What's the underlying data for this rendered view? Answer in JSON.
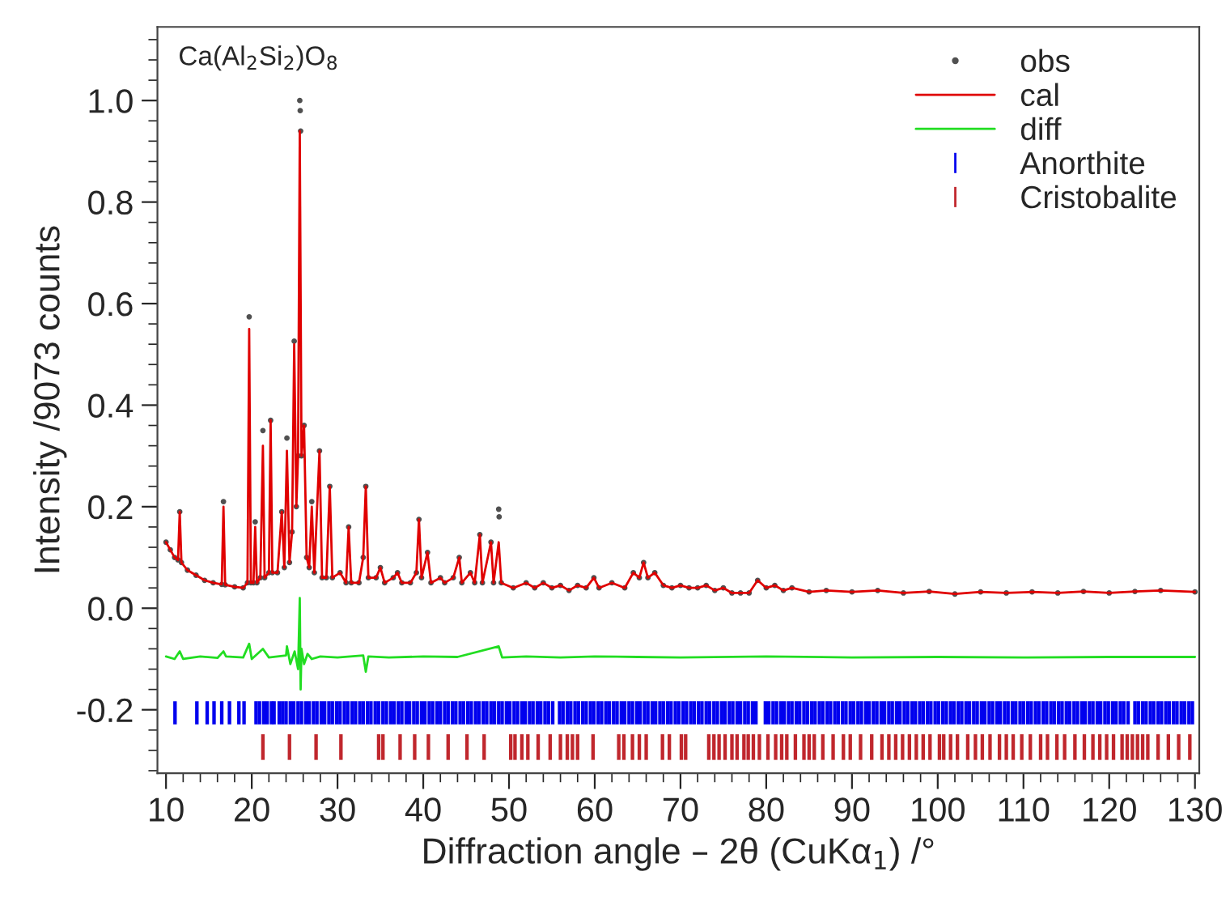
{
  "chart_data": {
    "type": "line",
    "xlabel": "Diffraction angle – 2θ (CuKα$_{1}$) /°",
    "ylabel": "Intensity /9073 counts",
    "annotations": [
      "Ca(Al$_{2}$Si$_{2}$)O$_{8}$"
    ],
    "xlim": [
      9,
      130.5
    ],
    "ylim": [
      -0.325,
      1.145
    ],
    "xticks": [
      10,
      20,
      30,
      40,
      50,
      60,
      70,
      80,
      90,
      100,
      110,
      120,
      130
    ],
    "yticks": [
      {
        "value": -0.2,
        "label": "-0.2"
      },
      {
        "value": 0,
        "label": "0.0"
      },
      {
        "value": 0.2,
        "label": "0.2"
      },
      {
        "value": 0.4,
        "label": "0.4"
      },
      {
        "value": 0.6,
        "label": "0.6"
      },
      {
        "value": 0.8,
        "label": "0.8"
      },
      {
        "value": 1.0,
        "label": "1.0"
      }
    ],
    "legend": "top right",
    "grid": false,
    "series": [
      {
        "name": "obs",
        "type": "scatter",
        "marker": "circle",
        "color": "#505050",
        "x": [
          10,
          10.5,
          11,
          11.4,
          11.6,
          11.8,
          12.5,
          13.5,
          14.5,
          15.5,
          16.5,
          16.7,
          16.9,
          18,
          19,
          19.5,
          19.7,
          19.9,
          20.2,
          20.4,
          20.6,
          21.0,
          21.3,
          21.5,
          22.0,
          22.2,
          22.4,
          23.0,
          23.5,
          23.8,
          24.1,
          24.4,
          24.7,
          24.95,
          25.2,
          25.4,
          25.6,
          25.65,
          25.7,
          25.8,
          26.1,
          26.4,
          26.7,
          27.0,
          27.3,
          27.9,
          28.2,
          28.7,
          29.1,
          29.4,
          30.3,
          31.0,
          31.3,
          31.6,
          32.5,
          33.0,
          33.3,
          33.6,
          34.5,
          35,
          35.5,
          36.5,
          37,
          37.5,
          38.5,
          39.2,
          39.5,
          39.8,
          40.5,
          40.9,
          42,
          42.5,
          43.5,
          44.2,
          44.5,
          45.5,
          46,
          46.6,
          46.9,
          47.9,
          48.2,
          48.8,
          48.85,
          49.1,
          50.5,
          52,
          53,
          54,
          55,
          56,
          57,
          58,
          59,
          59.9,
          60.5,
          62,
          63.5,
          64.5,
          65.2,
          65.7,
          66.2,
          67,
          68,
          69,
          70,
          71,
          72,
          73,
          74,
          75,
          76,
          77,
          78,
          79,
          80,
          81,
          82,
          83,
          85,
          87,
          90,
          93,
          96,
          99,
          102,
          105,
          108,
          111,
          114,
          117,
          120,
          123,
          126,
          130
        ],
        "values": [
          0.13,
          0.115,
          0.1,
          0.095,
          0.19,
          0.09,
          0.075,
          0.065,
          0.055,
          0.05,
          0.047,
          0.21,
          0.046,
          0.042,
          0.04,
          0.05,
          0.574,
          0.05,
          0.05,
          0.17,
          0.05,
          0.06,
          0.35,
          0.06,
          0.07,
          0.37,
          0.07,
          0.07,
          0.19,
          0.08,
          0.335,
          0.09,
          0.15,
          0.526,
          0.2,
          0.3,
          1.0,
          0.98,
          0.94,
          0.3,
          0.36,
          0.1,
          0.08,
          0.21,
          0.07,
          0.31,
          0.06,
          0.06,
          0.24,
          0.06,
          0.07,
          0.05,
          0.16,
          0.05,
          0.05,
          0.1,
          0.24,
          0.06,
          0.06,
          0.08,
          0.05,
          0.06,
          0.07,
          0.05,
          0.05,
          0.07,
          0.175,
          0.06,
          0.11,
          0.05,
          0.06,
          0.05,
          0.06,
          0.1,
          0.05,
          0.07,
          0.05,
          0.145,
          0.05,
          0.13,
          0.05,
          0.195,
          0.18,
          0.05,
          0.04,
          0.05,
          0.04,
          0.05,
          0.04,
          0.045,
          0.035,
          0.045,
          0.04,
          0.06,
          0.04,
          0.05,
          0.04,
          0.07,
          0.06,
          0.09,
          0.06,
          0.07,
          0.045,
          0.04,
          0.045,
          0.04,
          0.04,
          0.045,
          0.035,
          0.04,
          0.03,
          0.03,
          0.03,
          0.055,
          0.04,
          0.045,
          0.035,
          0.04,
          0.032,
          0.035,
          0.032,
          0.035,
          0.03,
          0.033,
          0.028,
          0.032,
          0.03,
          0.032,
          0.03,
          0.033,
          0.03,
          0.033,
          0.035,
          0.032
        ]
      },
      {
        "name": "cal",
        "color": "#e00000",
        "x": [
          10,
          10.5,
          11,
          11.4,
          11.6,
          11.8,
          12.5,
          13.5,
          14.5,
          15.5,
          16.5,
          16.7,
          16.9,
          18,
          19,
          19.5,
          19.7,
          19.9,
          20.2,
          20.4,
          20.6,
          21.0,
          21.3,
          21.5,
          22.0,
          22.2,
          22.4,
          23.0,
          23.5,
          23.8,
          24.1,
          24.4,
          24.7,
          24.95,
          25.2,
          25.4,
          25.6,
          25.8,
          26.1,
          26.4,
          26.7,
          27.0,
          27.3,
          27.9,
          28.2,
          28.7,
          29.1,
          29.4,
          30.3,
          31.0,
          31.3,
          31.6,
          32.5,
          33.0,
          33.3,
          33.6,
          34.5,
          35,
          35.5,
          36.5,
          37,
          37.5,
          38.5,
          39.2,
          39.5,
          39.8,
          40.5,
          40.9,
          42,
          42.5,
          43.5,
          44.2,
          44.5,
          45.5,
          46,
          46.6,
          46.9,
          47.9,
          48.2,
          48.8,
          49.1,
          50.5,
          52,
          53,
          54,
          55,
          56,
          57,
          58,
          59,
          59.9,
          60.5,
          62,
          63.5,
          64.5,
          65.2,
          65.7,
          66.2,
          67,
          68,
          69,
          70,
          71,
          72,
          73,
          74,
          75,
          76,
          77,
          78,
          79,
          80,
          81,
          82,
          83,
          85,
          87,
          90,
          93,
          96,
          99,
          102,
          105,
          108,
          111,
          114,
          117,
          120,
          123,
          126,
          130
        ],
        "values": [
          0.13,
          0.115,
          0.1,
          0.095,
          0.19,
          0.09,
          0.075,
          0.065,
          0.055,
          0.05,
          0.047,
          0.2,
          0.046,
          0.042,
          0.04,
          0.05,
          0.55,
          0.05,
          0.05,
          0.16,
          0.05,
          0.06,
          0.32,
          0.06,
          0.07,
          0.37,
          0.07,
          0.07,
          0.19,
          0.08,
          0.31,
          0.09,
          0.15,
          0.52,
          0.2,
          0.3,
          0.94,
          0.3,
          0.36,
          0.1,
          0.08,
          0.2,
          0.07,
          0.31,
          0.06,
          0.06,
          0.24,
          0.06,
          0.07,
          0.05,
          0.16,
          0.05,
          0.05,
          0.1,
          0.24,
          0.06,
          0.06,
          0.08,
          0.05,
          0.06,
          0.07,
          0.05,
          0.05,
          0.07,
          0.175,
          0.06,
          0.11,
          0.05,
          0.06,
          0.05,
          0.06,
          0.1,
          0.05,
          0.07,
          0.05,
          0.145,
          0.05,
          0.13,
          0.05,
          0.13,
          0.05,
          0.04,
          0.05,
          0.04,
          0.05,
          0.04,
          0.045,
          0.035,
          0.045,
          0.04,
          0.06,
          0.04,
          0.05,
          0.04,
          0.07,
          0.06,
          0.09,
          0.06,
          0.07,
          0.045,
          0.04,
          0.045,
          0.04,
          0.04,
          0.045,
          0.035,
          0.04,
          0.03,
          0.03,
          0.03,
          0.055,
          0.04,
          0.045,
          0.035,
          0.04,
          0.032,
          0.035,
          0.032,
          0.035,
          0.03,
          0.033,
          0.028,
          0.032,
          0.03,
          0.032,
          0.03,
          0.033,
          0.03,
          0.033,
          0.035,
          0.032
        ]
      },
      {
        "name": "diff",
        "type": "line",
        "color": "#22dd22",
        "x": [
          10,
          11,
          11.6,
          12,
          14,
          16,
          16.7,
          17,
          19,
          19.7,
          20,
          21.3,
          22,
          24,
          24.1,
          24.5,
          25,
          25.4,
          25.6,
          25.7,
          25.8,
          26.1,
          26.5,
          27,
          28,
          30,
          33,
          33.3,
          33.6,
          36,
          40,
          44,
          48.8,
          49.2,
          52,
          56,
          60,
          65,
          70,
          80,
          90,
          100,
          110,
          120,
          130
        ],
        "values": [
          -0.095,
          -0.1,
          -0.085,
          -0.1,
          -0.095,
          -0.098,
          -0.085,
          -0.095,
          -0.097,
          -0.07,
          -0.1,
          -0.08,
          -0.097,
          -0.093,
          -0.075,
          -0.11,
          -0.085,
          -0.12,
          0.02,
          -0.16,
          -0.08,
          -0.11,
          -0.09,
          -0.1,
          -0.095,
          -0.097,
          -0.093,
          -0.125,
          -0.095,
          -0.097,
          -0.095,
          -0.096,
          -0.075,
          -0.097,
          -0.095,
          -0.097,
          -0.095,
          -0.096,
          -0.097,
          -0.095,
          -0.097,
          -0.096,
          -0.097,
          -0.096,
          -0.096
        ]
      },
      {
        "name": "Anorthite",
        "type": "bar",
        "color": "#0000ee",
        "base": [
          -0.227,
          -0.227,
          -0.227,
          -0.227,
          -0.227,
          -0.227,
          -0.227,
          -0.227,
          -0.227,
          -0.227,
          -0.227,
          -0.227,
          -0.227,
          -0.227,
          -0.227,
          -0.227,
          -0.227,
          -0.227,
          -0.227,
          -0.227,
          -0.227,
          -0.227,
          -0.227,
          -0.227,
          -0.227,
          -0.227,
          -0.227,
          -0.227,
          -0.227,
          -0.227,
          -0.227,
          -0.227,
          -0.227,
          -0.227,
          -0.227,
          -0.227,
          -0.227,
          -0.227,
          -0.227,
          -0.227,
          -0.227,
          -0.227,
          -0.227,
          -0.227,
          -0.227,
          -0.227,
          -0.227,
          -0.227,
          -0.227,
          -0.227,
          -0.227,
          -0.227,
          -0.227,
          -0.227,
          -0.227,
          -0.227,
          -0.227,
          -0.227,
          -0.227,
          -0.227,
          -0.227,
          -0.227,
          -0.227,
          -0.227,
          -0.227,
          -0.227,
          -0.227,
          -0.227,
          -0.227,
          -0.227,
          -0.227,
          -0.227,
          -0.227,
          -0.227,
          -0.227,
          -0.227,
          -0.227,
          -0.227,
          -0.227,
          -0.227,
          -0.227,
          -0.227,
          -0.227,
          -0.227,
          -0.227,
          -0.227,
          -0.227,
          -0.227,
          -0.227,
          -0.227,
          -0.227,
          -0.227,
          -0.227,
          -0.227,
          -0.227,
          -0.227,
          -0.227,
          -0.227,
          -0.227,
          -0.227,
          -0.227,
          -0.227,
          -0.227,
          -0.227,
          -0.227,
          -0.227,
          -0.227,
          -0.227,
          -0.227,
          -0.227,
          -0.227,
          -0.227,
          -0.227,
          -0.227,
          -0.227,
          -0.227,
          -0.227,
          -0.227,
          -0.227,
          -0.227,
          -0.227,
          -0.227,
          -0.227,
          -0.227,
          -0.227,
          -0.227,
          -0.227,
          -0.227,
          -0.227,
          -0.227,
          -0.227,
          -0.227,
          -0.227,
          -0.227,
          -0.227,
          -0.227,
          -0.227,
          -0.227,
          -0.227,
          -0.227,
          -0.227,
          -0.227,
          -0.227,
          -0.227,
          -0.227,
          -0.227,
          -0.227,
          -0.227,
          -0.227,
          -0.227,
          -0.227,
          -0.227,
          -0.227,
          -0.227,
          -0.227,
          -0.227,
          -0.227,
          -0.227,
          -0.227,
          -0.227,
          -0.227,
          -0.227,
          -0.227,
          -0.227,
          -0.227,
          -0.227,
          -0.227,
          -0.227,
          -0.227,
          -0.227,
          -0.227,
          -0.227,
          -0.227,
          -0.227,
          -0.227,
          -0.227,
          -0.227,
          -0.227,
          -0.227,
          -0.227,
          -0.227,
          -0.227,
          -0.227,
          -0.227,
          -0.227,
          -0.227,
          -0.227,
          -0.227,
          -0.227,
          -0.227,
          -0.227,
          -0.227,
          -0.227,
          -0.227,
          -0.227,
          -0.227,
          -0.227,
          -0.227,
          -0.227,
          -0.227,
          -0.227,
          -0.227,
          -0.227,
          -0.227,
          -0.227,
          -0.227,
          -0.227,
          -0.227,
          -0.227,
          -0.227,
          -0.227,
          -0.227,
          -0.227,
          -0.227,
          -0.227,
          -0.227,
          -0.227,
          -0.227,
          -0.227,
          -0.227,
          -0.227,
          -0.227,
          -0.227,
          -0.227,
          -0.227,
          -0.227,
          -0.227,
          -0.227,
          -0.227,
          -0.227,
          -0.227,
          -0.227,
          -0.227,
          -0.227,
          -0.227,
          -0.227,
          -0.227,
          -0.227,
          -0.227,
          -0.227,
          -0.227,
          -0.227,
          -0.227,
          -0.227,
          -0.227,
          -0.227,
          -0.227,
          -0.227,
          -0.227
        ],
        "x": [
          11.05,
          13.6,
          14.8,
          15.6,
          16.5,
          17.4,
          18.5,
          19.1,
          20.5,
          20.9,
          21.4,
          21.8,
          22.3,
          22.6,
          23.2,
          23.6,
          24.0,
          24.5,
          24.9,
          25.4,
          25.8,
          26.3,
          26.7,
          27.2,
          27.6,
          28.1,
          28.5,
          29.0,
          29.4,
          29.9,
          30.3,
          30.8,
          31.2,
          31.7,
          32.1,
          32.6,
          33.0,
          33.5,
          33.9,
          34.4,
          34.8,
          35.3,
          35.7,
          36.2,
          36.6,
          37.1,
          37.5,
          38.0,
          38.4,
          38.9,
          39.3,
          39.8,
          40.2,
          40.7,
          41.1,
          41.6,
          42.0,
          42.5,
          42.9,
          43.4,
          43.8,
          44.3,
          44.7,
          45.2,
          45.6,
          46.1,
          46.5,
          47.0,
          47.4,
          47.9,
          48.3,
          48.8,
          49.2,
          49.7,
          50.1,
          50.6,
          51.0,
          51.5,
          51.9,
          52.4,
          52.8,
          53.3,
          53.7,
          54.2,
          54.6,
          55.1,
          55.9,
          56.3,
          56.8,
          57.2,
          57.7,
          58.1,
          58.6,
          59.0,
          59.5,
          59.9,
          60.4,
          60.8,
          61.3,
          61.7,
          62.2,
          62.6,
          63.1,
          63.5,
          64.0,
          64.4,
          64.9,
          65.3,
          65.8,
          66.2,
          66.7,
          67.1,
          67.6,
          68.0,
          68.5,
          68.9,
          69.4,
          69.8,
          70.3,
          70.7,
          71.2,
          71.6,
          72.1,
          72.5,
          73.0,
          73.4,
          73.9,
          74.3,
          74.8,
          75.2,
          75.7,
          76.1,
          76.6,
          77.0,
          77.5,
          77.9,
          78.4,
          78.8,
          79.9,
          80.3,
          80.8,
          81.2,
          81.7,
          82.1,
          82.6,
          83.0,
          83.5,
          83.9,
          84.4,
          84.8,
          85.3,
          85.7,
          86.2,
          86.6,
          87.1,
          87.5,
          88.0,
          88.4,
          88.9,
          89.3,
          89.8,
          90.2,
          90.7,
          91.1,
          91.6,
          92.0,
          92.5,
          92.9,
          93.4,
          93.8,
          94.3,
          94.7,
          95.2,
          95.6,
          96.1,
          96.5,
          97.0,
          97.4,
          97.9,
          98.3,
          98.8,
          99.2,
          99.7,
          100.1,
          100.6,
          101.0,
          101.5,
          101.9,
          102.4,
          102.8,
          103.3,
          103.7,
          104.2,
          104.6,
          105.1,
          105.5,
          106.0,
          106.4,
          106.9,
          107.3,
          107.8,
          108.2,
          108.7,
          109.1,
          109.6,
          110.0,
          110.5,
          110.9,
          111.4,
          111.8,
          112.3,
          112.7,
          113.2,
          113.6,
          114.1,
          114.5,
          115.0,
          115.4,
          115.9,
          116.3,
          116.8,
          117.2,
          117.7,
          118.1,
          118.6,
          119.0,
          119.5,
          119.9,
          120.4,
          120.8,
          121.3,
          121.7,
          122.2,
          123.0,
          123.4,
          123.9,
          124.3,
          124.8,
          125.2,
          125.7,
          126.1,
          126.6,
          127.0,
          127.5,
          127.9,
          128.4,
          128.8,
          129.3,
          129.7
        ],
        "values": [
          0.042,
          0.042,
          0.042,
          0.042,
          0.042,
          0.042,
          0.042,
          0.042,
          0.042,
          0.042,
          0.042,
          0.042,
          0.042,
          0.042,
          0.042,
          0.042,
          0.042,
          0.042,
          0.042,
          0.042,
          0.042,
          0.042,
          0.042,
          0.042,
          0.042,
          0.042,
          0.042,
          0.042,
          0.042,
          0.042,
          0.042,
          0.042,
          0.042,
          0.042,
          0.042,
          0.042,
          0.042,
          0.042,
          0.042,
          0.042,
          0.042,
          0.042,
          0.042,
          0.042,
          0.042,
          0.042,
          0.042,
          0.042,
          0.042,
          0.042,
          0.042,
          0.042,
          0.042,
          0.042,
          0.042,
          0.042,
          0.042,
          0.042,
          0.042,
          0.042,
          0.042,
          0.042,
          0.042,
          0.042,
          0.042,
          0.042,
          0.042,
          0.042,
          0.042,
          0.042,
          0.042,
          0.042,
          0.042,
          0.042,
          0.042,
          0.042,
          0.042,
          0.042,
          0.042,
          0.042,
          0.042,
          0.042,
          0.042,
          0.042,
          0.042,
          0.042,
          0.042,
          0.042,
          0.042,
          0.042,
          0.042,
          0.042,
          0.042,
          0.042,
          0.042,
          0.042,
          0.042,
          0.042,
          0.042,
          0.042,
          0.042,
          0.042,
          0.042,
          0.042,
          0.042,
          0.042,
          0.042,
          0.042,
          0.042,
          0.042,
          0.042,
          0.042,
          0.042,
          0.042,
          0.042,
          0.042,
          0.042,
          0.042,
          0.042,
          0.042,
          0.042,
          0.042,
          0.042,
          0.042,
          0.042,
          0.042,
          0.042,
          0.042,
          0.042,
          0.042,
          0.042,
          0.042,
          0.042,
          0.042,
          0.042,
          0.042,
          0.042,
          0.042,
          0.042,
          0.042,
          0.042,
          0.042,
          0.042,
          0.042,
          0.042,
          0.042,
          0.042,
          0.042,
          0.042,
          0.042,
          0.042,
          0.042,
          0.042,
          0.042,
          0.042,
          0.042,
          0.042,
          0.042,
          0.042,
          0.042,
          0.042,
          0.042,
          0.042,
          0.042,
          0.042,
          0.042,
          0.042,
          0.042,
          0.042,
          0.042,
          0.042,
          0.042,
          0.042,
          0.042,
          0.042,
          0.042,
          0.042,
          0.042,
          0.042,
          0.042,
          0.042,
          0.042,
          0.042,
          0.042,
          0.042,
          0.042,
          0.042,
          0.042,
          0.042,
          0.042,
          0.042,
          0.042,
          0.042,
          0.042,
          0.042,
          0.042,
          0.042,
          0.042,
          0.042,
          0.042,
          0.042,
          0.042,
          0.042,
          0.042,
          0.042,
          0.042,
          0.042,
          0.042,
          0.042,
          0.042,
          0.042,
          0.042,
          0.042,
          0.042,
          0.042,
          0.042,
          0.042,
          0.042,
          0.042,
          0.042,
          0.042,
          0.042,
          0.042,
          0.042,
          0.042,
          0.042,
          0.042,
          0.042,
          0.042,
          0.042,
          0.042,
          0.042,
          0.042,
          0.042,
          0.042,
          0.042,
          0.042,
          0.042,
          0.042,
          0.042,
          0.042,
          0.042,
          0.042,
          0.042,
          0.042,
          0.042,
          0.042,
          0.042,
          0.042
        ]
      },
      {
        "name": "Cristobalite",
        "type": "bar",
        "color": "#c0272d",
        "base": [
          -0.297,
          -0.297,
          -0.297,
          -0.297,
          -0.297,
          -0.297,
          -0.297,
          -0.297,
          -0.297,
          -0.297,
          -0.297,
          -0.297,
          -0.297,
          -0.297,
          -0.297,
          -0.297,
          -0.297,
          -0.297,
          -0.297,
          -0.297,
          -0.297,
          -0.297,
          -0.297,
          -0.297,
          -0.297,
          -0.297,
          -0.297,
          -0.297,
          -0.297,
          -0.297,
          -0.297,
          -0.297,
          -0.297,
          -0.297,
          -0.297,
          -0.297,
          -0.297,
          -0.297,
          -0.297,
          -0.297,
          -0.297,
          -0.297,
          -0.297,
          -0.297,
          -0.297,
          -0.297,
          -0.297,
          -0.297,
          -0.297,
          -0.297,
          -0.297,
          -0.297,
          -0.297,
          -0.297,
          -0.297,
          -0.297,
          -0.297,
          -0.297,
          -0.297,
          -0.297,
          -0.297,
          -0.297,
          -0.297,
          -0.297,
          -0.297,
          -0.297,
          -0.297,
          -0.297,
          -0.297,
          -0.297,
          -0.297,
          -0.297,
          -0.297,
          -0.297,
          -0.297,
          -0.297,
          -0.297,
          -0.297,
          -0.297,
          -0.297,
          -0.297,
          -0.297,
          -0.297,
          -0.297,
          -0.297,
          -0.297,
          -0.297,
          -0.297,
          -0.297,
          -0.297,
          -0.297,
          -0.297,
          -0.297,
          -0.297,
          -0.297,
          -0.297,
          -0.297
        ],
        "x": [
          21.3,
          24.4,
          27.5,
          30.4,
          34.8,
          35.3,
          37.3,
          39.0,
          40.6,
          42.9,
          45.1,
          47.1,
          50.2,
          50.7,
          51.5,
          52.2,
          53.4,
          54.8,
          56.0,
          56.8,
          57.4,
          58.0,
          59.8,
          62.8,
          63.4,
          64.4,
          65.2,
          66.0,
          67.9,
          68.7,
          70.1,
          70.6,
          73.3,
          73.9,
          74.5,
          75.2,
          76.0,
          76.6,
          77.4,
          77.9,
          78.5,
          79.2,
          80.2,
          81.1,
          81.8,
          82.4,
          83.4,
          84.4,
          85.0,
          85.6,
          86.6,
          87.8,
          89.0,
          89.8,
          91.0,
          92.3,
          93.5,
          94.3,
          95.1,
          95.9,
          96.7,
          97.5,
          98.3,
          99.1,
          100.2,
          100.7,
          101.5,
          102.3,
          103.5,
          104.4,
          105.2,
          106.1,
          107.2,
          108.0,
          108.8,
          109.8,
          110.8,
          112.0,
          112.8,
          113.9,
          114.8,
          116.0,
          117.1,
          118.1,
          118.9,
          119.7,
          120.5,
          121.5,
          122.1,
          122.7,
          123.3,
          123.9,
          124.5,
          125.7,
          126.9,
          128.1,
          129.4
        ],
        "values": [
          0.047,
          0.047,
          0.047,
          0.047,
          0.047,
          0.047,
          0.047,
          0.047,
          0.047,
          0.047,
          0.047,
          0.047,
          0.047,
          0.047,
          0.047,
          0.047,
          0.047,
          0.047,
          0.047,
          0.047,
          0.047,
          0.047,
          0.047,
          0.047,
          0.047,
          0.047,
          0.047,
          0.047,
          0.047,
          0.047,
          0.047,
          0.047,
          0.047,
          0.047,
          0.047,
          0.047,
          0.047,
          0.047,
          0.047,
          0.047,
          0.047,
          0.047,
          0.047,
          0.047,
          0.047,
          0.047,
          0.047,
          0.047,
          0.047,
          0.047,
          0.047,
          0.047,
          0.047,
          0.047,
          0.047,
          0.047,
          0.047,
          0.047,
          0.047,
          0.047,
          0.047,
          0.047,
          0.047,
          0.047,
          0.047,
          0.047,
          0.047,
          0.047,
          0.047,
          0.047,
          0.047,
          0.047,
          0.047,
          0.047,
          0.047,
          0.047,
          0.047,
          0.047,
          0.047,
          0.047,
          0.047,
          0.047,
          0.047,
          0.047,
          0.047,
          0.047,
          0.047,
          0.047,
          0.047,
          0.047,
          0.047,
          0.047,
          0.047,
          0.047,
          0.047,
          0.047,
          0.047
        ]
      }
    ]
  }
}
